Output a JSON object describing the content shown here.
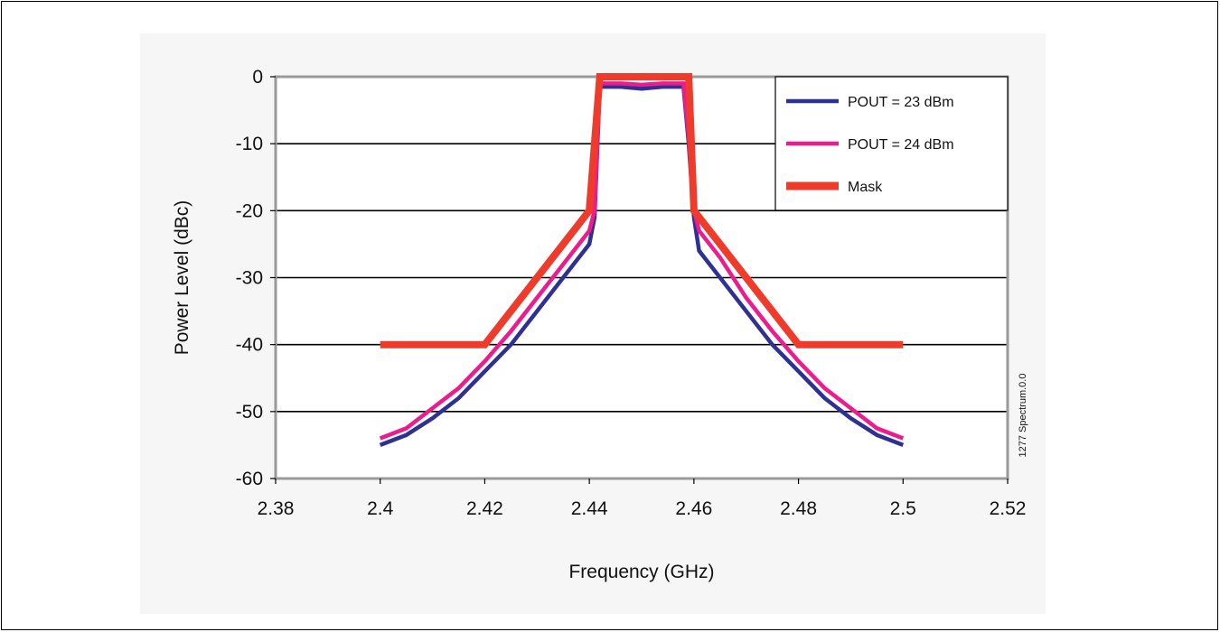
{
  "chart_data": {
    "type": "line",
    "title": "",
    "xlabel": "Frequency (GHz)",
    "ylabel": "Power Level (dBc)",
    "xlim": [
      2.38,
      2.52
    ],
    "ylim": [
      -60,
      0
    ],
    "xticks": [
      "2.38",
      "2.4",
      "2.42",
      "2.44",
      "2.46",
      "2.48",
      "2.5",
      "2.52"
    ],
    "yticks": [
      "0",
      "-10",
      "-20",
      "-30",
      "-40",
      "-50",
      "-60"
    ],
    "grid": "horizontal",
    "legend_position": "top-right",
    "series": [
      {
        "name": "POUT = 23 dBm",
        "color": "#2e3192",
        "x": [
          2.4,
          2.405,
          2.41,
          2.415,
          2.42,
          2.425,
          2.43,
          2.435,
          2.44,
          2.441,
          2.442,
          2.446,
          2.45,
          2.454,
          2.458,
          2.459,
          2.46,
          2.461,
          2.465,
          2.47,
          2.475,
          2.48,
          2.485,
          2.49,
          2.495,
          2.5
        ],
        "y": [
          -55,
          -53.5,
          -51,
          -48,
          -44,
          -40,
          -35,
          -30,
          -25,
          -21,
          -1.5,
          -1.5,
          -1.8,
          -1.5,
          -1.5,
          -10,
          -21,
          -26,
          -30,
          -35,
          -40,
          -44,
          -48,
          -51,
          -53.5,
          -55
        ]
      },
      {
        "name": "POUT = 24 dBm",
        "color": "#ec1c8c",
        "x": [
          2.4,
          2.405,
          2.41,
          2.415,
          2.42,
          2.425,
          2.43,
          2.435,
          2.44,
          2.441,
          2.442,
          2.446,
          2.45,
          2.454,
          2.458,
          2.459,
          2.46,
          2.461,
          2.465,
          2.47,
          2.475,
          2.48,
          2.485,
          2.49,
          2.495,
          2.5
        ],
        "y": [
          -54,
          -52.5,
          -49.5,
          -46.5,
          -42.5,
          -38,
          -33,
          -28,
          -23,
          -20,
          -1,
          -1,
          -1.2,
          -1,
          -1,
          -9,
          -20,
          -23,
          -27,
          -33,
          -38,
          -42.5,
          -46.5,
          -49.5,
          -52.5,
          -54
        ]
      },
      {
        "name": "Mask",
        "color": "#ef3b2c",
        "x": [
          2.4,
          2.42,
          2.44,
          2.441,
          2.442,
          2.458,
          2.459,
          2.46,
          2.48,
          2.5
        ],
        "y": [
          -40,
          -40,
          -20,
          -10,
          0,
          0,
          0,
          -20,
          -40,
          -40
        ]
      }
    ]
  },
  "side_note": "1277 Spectrum.0.0"
}
